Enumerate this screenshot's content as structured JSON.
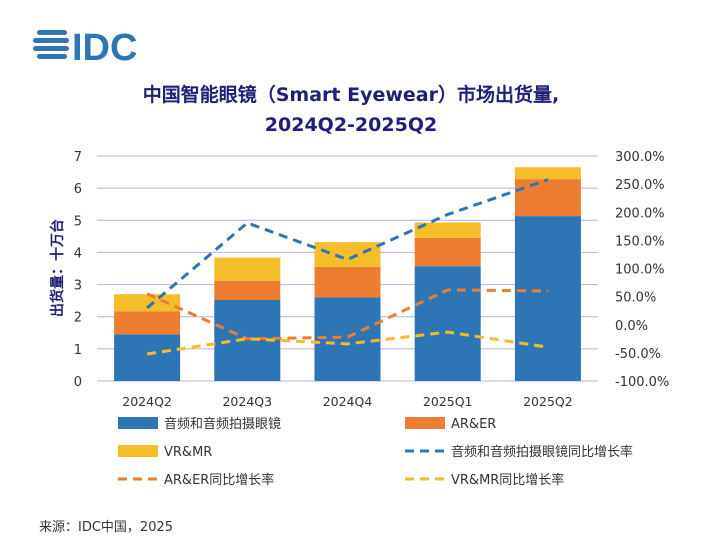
{
  "logo": {
    "text": "IDC",
    "icon": "globe-icon"
  },
  "source": "来源：IDC中国，2025",
  "colors": {
    "audio": "#2E75B6",
    "ar": "#ED7D31",
    "vr": "#F4BD2A",
    "title": "#1f1f7a",
    "grid": "#B7B2DE"
  },
  "chart_data": {
    "type": "bar",
    "stacked": true,
    "title_line1": "中国智能眼镜（Smart Eyewear）市场出货量,",
    "title_line2": "2024Q2-2025Q2",
    "ylabel": "出货量：十万台",
    "categories": [
      "2024Q2",
      "2024Q3",
      "2024Q4",
      "2025Q1",
      "2025Q2"
    ],
    "ylim": [
      0,
      7
    ],
    "yticks": [
      "0",
      "1",
      "2",
      "3",
      "4",
      "5",
      "6",
      "7"
    ],
    "y2lim": [
      -100,
      300
    ],
    "y2ticks": [
      "-100.0%",
      "-50.0%",
      "0.0%",
      "50.0%",
      "100.0%",
      "150.0%",
      "200.0%",
      "250.0%",
      "300.0%"
    ],
    "series": [
      {
        "name": "音频和音频拍摄眼镜",
        "kind": "bar",
        "color": "#2E75B6",
        "values": [
          1.45,
          2.52,
          2.6,
          3.57,
          5.13
        ]
      },
      {
        "name": "AR&ER",
        "kind": "bar",
        "color": "#ED7D31",
        "values": [
          0.72,
          0.6,
          0.95,
          0.88,
          1.15
        ]
      },
      {
        "name": "VR&MR",
        "kind": "bar",
        "color": "#F4BD2A",
        "values": [
          0.53,
          0.72,
          0.77,
          0.48,
          0.37
        ]
      },
      {
        "name": "音频和音频拍摄眼镜同比增长率",
        "kind": "line",
        "axis": "right",
        "color": "#2E75B6",
        "values": [
          30,
          181,
          116,
          196,
          258
        ]
      },
      {
        "name": "AR&ER同比增长率",
        "kind": "line",
        "axis": "right",
        "color": "#ED7D31",
        "values": [
          55,
          -25,
          -22,
          62,
          60
        ]
      },
      {
        "name": "VR&MR同比增长率",
        "kind": "line",
        "axis": "right",
        "color": "#F4BD2A",
        "values": [
          -52,
          -25,
          -34,
          -13,
          -40
        ]
      }
    ]
  }
}
